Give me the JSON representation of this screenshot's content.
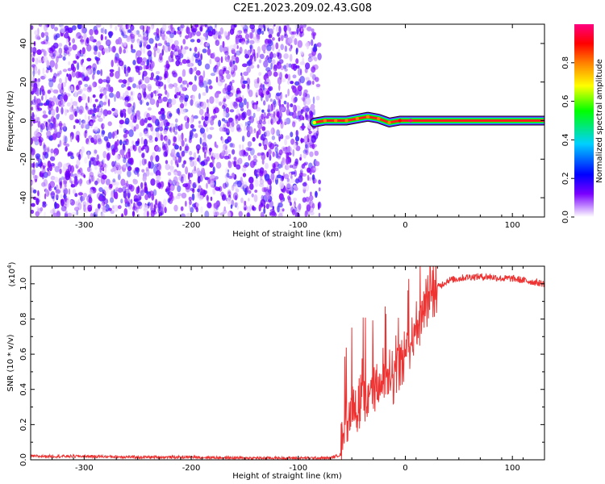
{
  "title": "C2E1.2023.209.02.43.G08",
  "chart_data": [
    {
      "type": "heatmap",
      "panel": "spectrogram",
      "xlabel": "Height of straight line (km)",
      "ylabel": "Frequency (Hz)",
      "xlim": [
        -350,
        130
      ],
      "ylim": [
        -50,
        50
      ],
      "xticks": [
        -300,
        -200,
        -100,
        0,
        100
      ],
      "yticks": [
        -40,
        -20,
        0,
        20,
        40
      ],
      "colorbar": {
        "label": "Normalized spectral amplitude",
        "range": [
          0.0,
          1.0
        ],
        "ticks": [
          "0.0",
          "0.2",
          "0.4",
          "0.6",
          "0.8"
        ],
        "colormap": [
          "#ffffff",
          "#7a00ff",
          "#0000ff",
          "#00d0ff",
          "#00ff00",
          "#ffff00",
          "#ff8000",
          "#ff0000",
          "#ff0080"
        ]
      },
      "noise_region_x": [
        -350,
        -80
      ],
      "signal_track": {
        "x": [
          -85,
          -75,
          -65,
          -55,
          -45,
          -35,
          -25,
          -15,
          -5,
          5,
          130
        ],
        "freq": [
          -1,
          0,
          0,
          0,
          1,
          2,
          1,
          -1,
          0,
          0,
          0
        ],
        "amplitude": [
          0.6,
          0.7,
          0.75,
          0.75,
          0.8,
          0.8,
          0.75,
          0.7,
          0.85,
          0.95,
          0.95
        ]
      }
    },
    {
      "type": "line",
      "panel": "snr",
      "xlabel": "Height of straight line (km)",
      "ylabel": "SNR (10 * v/v)",
      "yscale_label": "(x10",
      "yscale_exponent": "4",
      "yscale_suffix": ")",
      "xlim": [
        -350,
        130
      ],
      "ylim": [
        0,
        1.1
      ],
      "xticks": [
        -300,
        -200,
        -100,
        0,
        100
      ],
      "yticks": [
        0.0,
        0.2,
        0.4,
        0.6,
        0.8,
        1.0
      ],
      "series": [
        {
          "color": "#ee3333",
          "x": [
            -350,
            -300,
            -250,
            -200,
            -150,
            -100,
            -70,
            -60,
            -55,
            -50,
            -45,
            -40,
            -35,
            -30,
            -25,
            -20,
            -15,
            -10,
            -5,
            0,
            5,
            10,
            15,
            20,
            25,
            30,
            40,
            50,
            60,
            70,
            80,
            90,
            100,
            110,
            120,
            130
          ],
          "y": [
            0.02,
            0.02,
            0.015,
            0.015,
            0.01,
            0.01,
            0.01,
            0.03,
            0.2,
            0.35,
            0.3,
            0.38,
            0.35,
            0.42,
            0.4,
            0.45,
            0.42,
            0.5,
            0.55,
            0.62,
            0.68,
            0.75,
            0.82,
            0.9,
            0.95,
            0.98,
            1.02,
            1.03,
            1.04,
            1.04,
            1.04,
            1.03,
            1.03,
            1.02,
            1.01,
            1.0
          ]
        }
      ]
    }
  ]
}
